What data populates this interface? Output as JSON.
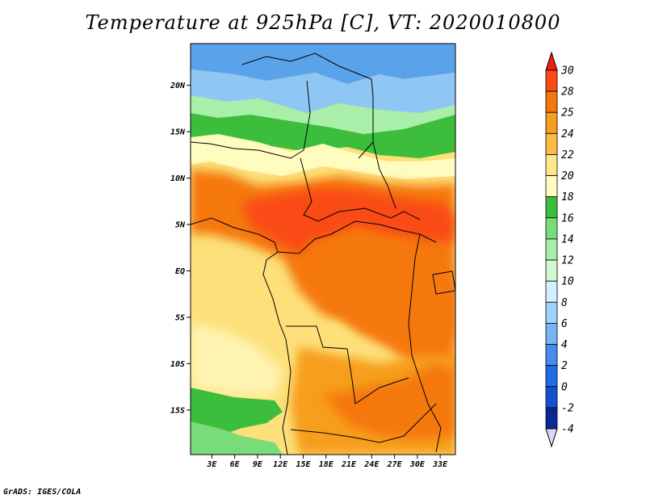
{
  "title": "Temperature at 925hPa [C], VT: 2020010800",
  "footer": "GrADS: IGES/COLA",
  "map": {
    "lat_labels": [
      {
        "text": "20N",
        "lat": 20
      },
      {
        "text": "15N",
        "lat": 15
      },
      {
        "text": "10N",
        "lat": 10
      },
      {
        "text": "5N",
        "lat": 5
      },
      {
        "text": "EQ",
        "lat": 0
      },
      {
        "text": "5S",
        "lat": -5
      },
      {
        "text": "10S",
        "lat": -10
      },
      {
        "text": "15S",
        "lat": -15
      }
    ],
    "lon_labels": [
      {
        "text": "3E",
        "lon": 3
      },
      {
        "text": "6E",
        "lon": 6
      },
      {
        "text": "9E",
        "lon": 9
      },
      {
        "text": "12E",
        "lon": 12
      },
      {
        "text": "15E",
        "lon": 15
      },
      {
        "text": "18E",
        "lon": 18
      },
      {
        "text": "21E",
        "lon": 21
      },
      {
        "text": "24E",
        "lon": 24
      },
      {
        "text": "27E",
        "lon": 27
      },
      {
        "text": "30E",
        "lon": 30
      },
      {
        "text": "33E",
        "lon": 33
      }
    ],
    "lon_range": [
      0.2,
      35.0
    ],
    "lat_range": [
      -19.8,
      24.5
    ]
  },
  "colorbar": {
    "levels": [
      "30",
      "28",
      "25",
      "24",
      "22",
      "20",
      "18",
      "16",
      "14",
      "12",
      "10",
      "8",
      "6",
      "4",
      "2",
      "0",
      "-2",
      "-4"
    ],
    "colors": [
      "#f01e0a",
      "#fa4b14",
      "#f5780f",
      "#f79e1e",
      "#fbbc46",
      "#fde78c",
      "#fffcc0",
      "#3cbe3c",
      "#78dc78",
      "#a8f0a8",
      "#d2fad2",
      "#d2f0ff",
      "#a0d2fa",
      "#78b4f0",
      "#468ceb",
      "#1e6ee6",
      "#1450d2",
      "#0a2896",
      "#0a0a6e",
      "#d8d8f8"
    ]
  }
}
